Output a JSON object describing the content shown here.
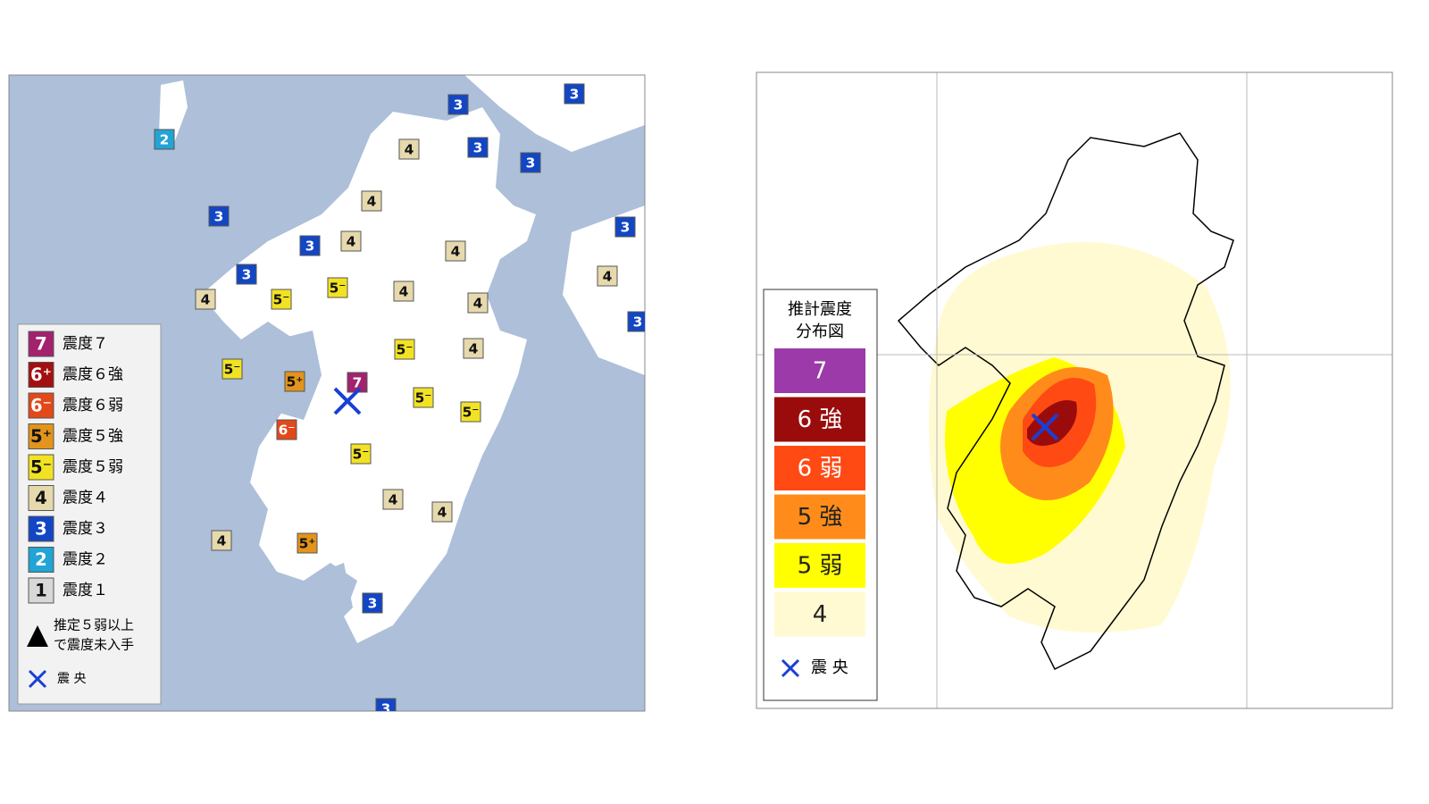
{
  "left_map": {
    "legend": [
      {
        "badge": "7",
        "label": "震度７",
        "color": "#a3226e"
      },
      {
        "badge": "6⁺",
        "label": "震度６強",
        "color": "#a31010"
      },
      {
        "badge": "6⁻",
        "label": "震度６弱",
        "color": "#e2481a"
      },
      {
        "badge": "5⁺",
        "label": "震度５強",
        "color": "#e3941c"
      },
      {
        "badge": "5⁻",
        "label": "震度５弱",
        "color": "#f2e224"
      },
      {
        "badge": "4",
        "label": "震度４",
        "color": "#e6d9ad"
      },
      {
        "badge": "3",
        "label": "震度３",
        "color": "#1346c4"
      },
      {
        "badge": "2",
        "label": "震度２",
        "color": "#22a4d4"
      },
      {
        "badge": "1",
        "label": "震度１",
        "color": "#d8d8d8"
      }
    ],
    "note": [
      "推定５弱以上",
      "で震度未入手"
    ],
    "epicenter": "震 央",
    "stations": [
      "3",
      "3",
      "2",
      "4",
      "3",
      "3",
      "4",
      "3",
      "3",
      "3",
      "4",
      "4",
      "3",
      "4",
      "4",
      "5⁻",
      "5⁻",
      "4",
      "4",
      "3",
      "5⁻",
      "4",
      "5⁻",
      "5⁺",
      "7",
      "5⁻",
      "5⁻",
      "6⁻",
      "5⁻",
      "4",
      "4",
      "4",
      "5⁺",
      "3",
      "3"
    ]
  },
  "right_map": {
    "legend_title": [
      "推計震度",
      "分布図"
    ],
    "legend": [
      {
        "label": "7",
        "color": "#9b3aa8"
      },
      {
        "label": "6 強",
        "color": "#9a0c0c"
      },
      {
        "label": "6 弱",
        "color": "#ff4a14"
      },
      {
        "label": "5 強",
        "color": "#ff8c1a"
      },
      {
        "label": "5 弱",
        "color": "#ffff00"
      },
      {
        "label": "4",
        "color": "#fffad2"
      }
    ],
    "epicenter": "震 央"
  }
}
